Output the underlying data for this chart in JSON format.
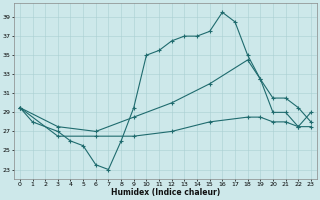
{
  "xlabel": "Humidex (Indice chaleur)",
  "xlim": [
    -0.5,
    23.5
  ],
  "ylim": [
    22,
    40.5
  ],
  "yticks": [
    23,
    25,
    27,
    29,
    31,
    33,
    35,
    37,
    39
  ],
  "xticks": [
    0,
    1,
    2,
    3,
    4,
    5,
    6,
    7,
    8,
    9,
    10,
    11,
    12,
    13,
    14,
    15,
    16,
    17,
    18,
    19,
    20,
    21,
    22,
    23
  ],
  "background_color": "#cde8ea",
  "grid_color": "#aacfd2",
  "line_color": "#1f6b6e",
  "line1_x": [
    0,
    1,
    3,
    4,
    5,
    6,
    7,
    8,
    9,
    10,
    11,
    12,
    13,
    14,
    15,
    16,
    17,
    18,
    19,
    20,
    21,
    22,
    23
  ],
  "line1_y": [
    29.5,
    28.0,
    27.0,
    26.0,
    25.5,
    23.5,
    23.0,
    26.0,
    29.5,
    35.0,
    35.5,
    36.5,
    37.0,
    37.0,
    37.5,
    39.5,
    38.5,
    35.0,
    32.5,
    29.0,
    29.0,
    27.5,
    29.0
  ],
  "line2_x": [
    0,
    3,
    6,
    9,
    12,
    15,
    18,
    19,
    20,
    21,
    22,
    23
  ],
  "line2_y": [
    29.5,
    27.5,
    27.0,
    28.5,
    30.0,
    32.0,
    34.5,
    32.5,
    30.5,
    30.5,
    29.5,
    28.0
  ],
  "line3_x": [
    0,
    3,
    6,
    9,
    12,
    15,
    18,
    19,
    20,
    21,
    22,
    23
  ],
  "line3_y": [
    29.5,
    26.5,
    26.5,
    26.5,
    27.0,
    28.0,
    28.5,
    28.5,
    28.0,
    28.0,
    27.5,
    27.5
  ]
}
